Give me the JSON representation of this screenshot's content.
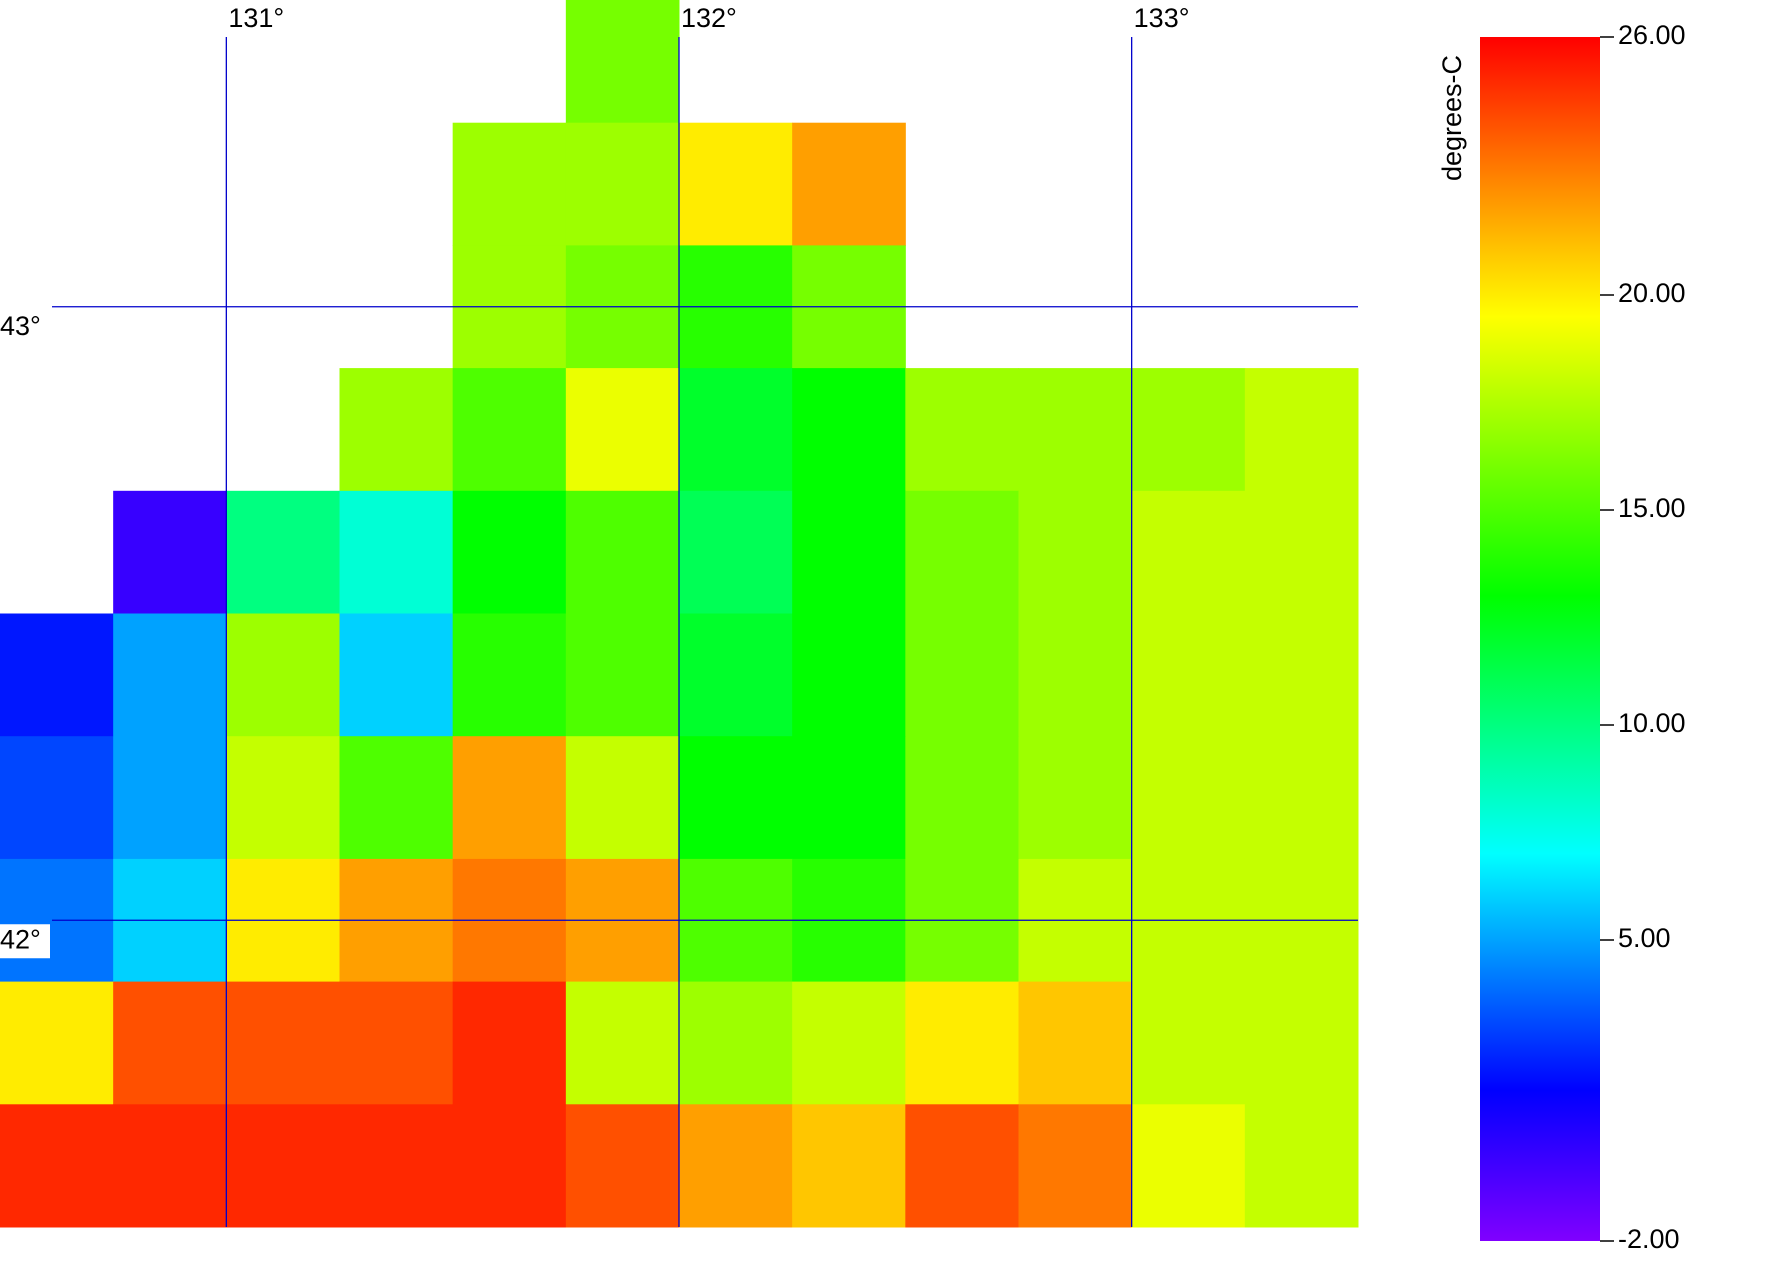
{
  "chart_data": {
    "type": "map",
    "xlim": [
      130.5,
      133.5
    ],
    "ylim": [
      41.5,
      43.5
    ],
    "xticks": [
      {
        "value": 131,
        "label": "131°"
      },
      {
        "value": 132,
        "label": "132°"
      },
      {
        "value": 133,
        "label": "133°"
      }
    ],
    "yticks": [
      {
        "value": 43,
        "label": "43°"
      },
      {
        "value": 42,
        "label": "42°"
      }
    ],
    "grid": true,
    "grid_color": "#0000cc",
    "values": [
      [
        null,
        null,
        null,
        null,
        null,
        16,
        null,
        null,
        null,
        null,
        null,
        null
      ],
      [
        null,
        null,
        null,
        null,
        17,
        17,
        20,
        22,
        null,
        null,
        null,
        null
      ],
      [
        null,
        null,
        null,
        null,
        17,
        16,
        14,
        16,
        null,
        null,
        null,
        null
      ],
      [
        null,
        null,
        null,
        17,
        15,
        19,
        12,
        13,
        17,
        17,
        17,
        18
      ],
      [
        null,
        0,
        10,
        8,
        13,
        15,
        11,
        13,
        16,
        17,
        18,
        18
      ],
      [
        2,
        5,
        17,
        6,
        14,
        15,
        12,
        13,
        16,
        17,
        18,
        18
      ],
      [
        3,
        5,
        18,
        15,
        22,
        18,
        13,
        13,
        16,
        17,
        18,
        18
      ],
      [
        4,
        6,
        20,
        22,
        23,
        22,
        15,
        14,
        16,
        18,
        18,
        18
      ],
      [
        20,
        24,
        24,
        24,
        25,
        18,
        17,
        18,
        20,
        21,
        18,
        18
      ],
      [
        25,
        25,
        25,
        25,
        25,
        24,
        22,
        21,
        24,
        23,
        19,
        18
      ]
    ],
    "colorbar": {
      "label": "degrees-C",
      "lim": [
        -2,
        26
      ],
      "ticks": [
        {
          "value": 26,
          "label": "26.00"
        },
        {
          "value": 20,
          "label": "20.00"
        },
        {
          "value": 15,
          "label": "15.00"
        },
        {
          "value": 10,
          "label": "10.00"
        },
        {
          "value": 5,
          "label": "5.00"
        },
        {
          "value": -2,
          "label": "-2.00"
        }
      ],
      "colormap": [
        {
          "value": -2,
          "color": "#8000ff"
        },
        {
          "value": 1.5,
          "color": "#0000ff"
        },
        {
          "value": 7,
          "color": "#00ffff"
        },
        {
          "value": 13,
          "color": "#00ff00"
        },
        {
          "value": 19.5,
          "color": "#ffff00"
        },
        {
          "value": 22.5,
          "color": "#ff8c00"
        },
        {
          "value": 26,
          "color": "#ff0000"
        }
      ]
    }
  }
}
